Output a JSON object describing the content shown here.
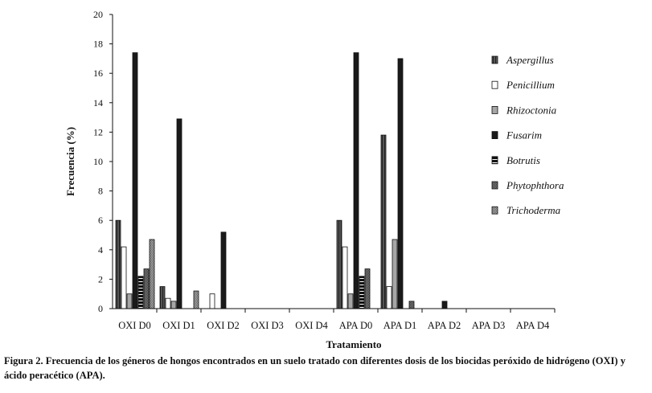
{
  "chart_data": {
    "type": "bar",
    "xlabel": "Tratamiento",
    "ylabel": "Frecuencia (%)",
    "ylim": [
      0,
      20
    ],
    "yticks": [
      0,
      2,
      4,
      6,
      8,
      10,
      12,
      14,
      16,
      18,
      20
    ],
    "grid": false,
    "legend_position": "right",
    "categories": [
      "OXI D0",
      "OXI D1",
      "OXI D2",
      "OXI D3",
      "OXI D4",
      "APA D0",
      "APA D1",
      "APA D2",
      "APA D3",
      "APA D4"
    ],
    "series": [
      {
        "name": "Aspergillus",
        "fill": "vstripe",
        "values": [
          6.0,
          1.5,
          0,
          0,
          0,
          6.0,
          11.8,
          0,
          0,
          0
        ]
      },
      {
        "name": "Penicillium",
        "fill": "#ffffff",
        "values": [
          4.2,
          0.7,
          1.0,
          0,
          0,
          4.2,
          1.5,
          0,
          0,
          0
        ]
      },
      {
        "name": "Rhizoctonia",
        "fill": "#a6a6a6",
        "values": [
          1.0,
          0.5,
          0,
          0,
          0,
          1.0,
          4.7,
          0,
          0,
          0
        ]
      },
      {
        "name": "Fusarim",
        "fill": "#1a1a1a",
        "values": [
          17.4,
          12.9,
          5.2,
          0,
          0,
          17.4,
          17.0,
          0.5,
          0,
          0
        ]
      },
      {
        "name": "Botrutis",
        "fill": "hstripe",
        "values": [
          2.2,
          0,
          0,
          0,
          0,
          2.2,
          0,
          0,
          0,
          0
        ]
      },
      {
        "name": "Phytophthora",
        "fill": "darkcheck",
        "values": [
          2.7,
          0,
          0,
          0,
          0,
          2.7,
          0.5,
          0,
          0,
          0
        ]
      },
      {
        "name": "Trichoderma",
        "fill": "lightcheck",
        "values": [
          4.7,
          1.2,
          0,
          0,
          0,
          0,
          0,
          0,
          0,
          0
        ]
      }
    ]
  },
  "caption": "Figura 2. Frecuencia de los géneros de hongos encontrados en un suelo tratado con diferentes dosis de los biocidas peróxido de hidrógeno (OXI) y ácido peracético (APA)."
}
